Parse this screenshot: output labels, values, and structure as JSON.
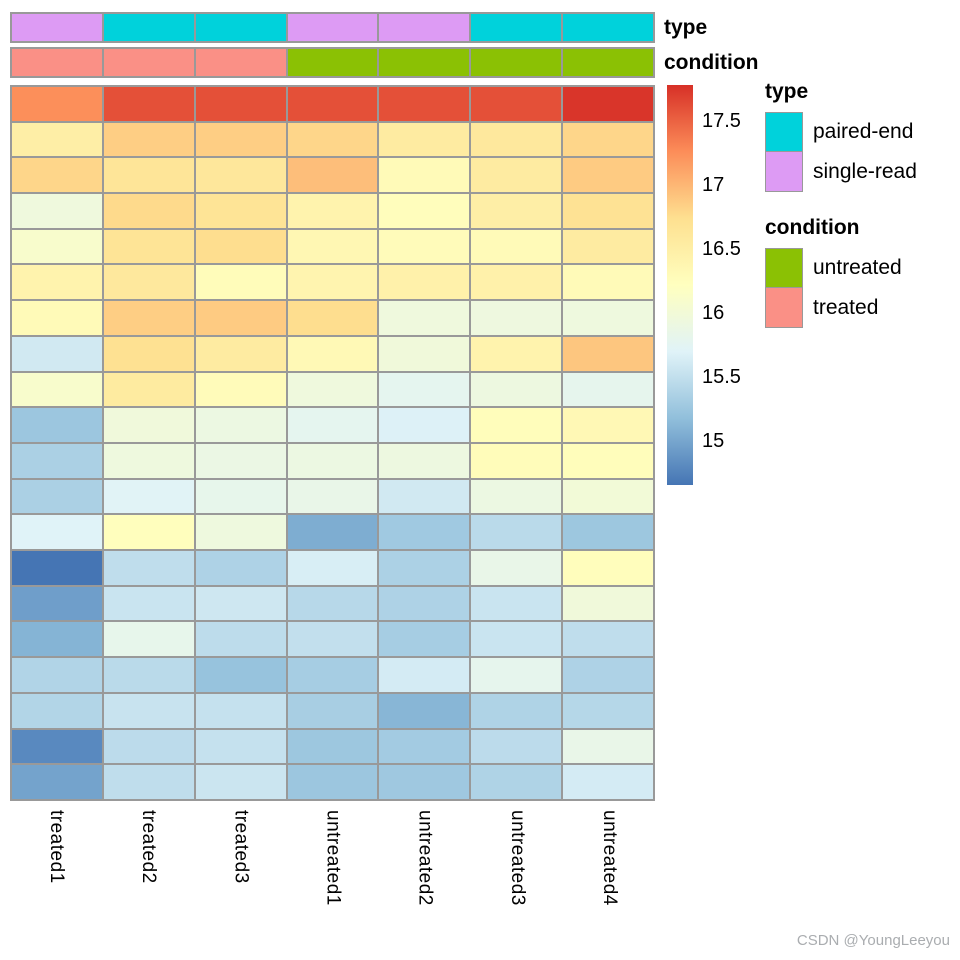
{
  "watermark": "CSDN @YoungLeeyou",
  "annotation_bars": {
    "type_label": "type",
    "condition_label": "condition"
  },
  "annotation_colors": {
    "paired-end": "#00D2DB",
    "single-read": "#DD9BF4",
    "untreated": "#8BC104",
    "treated": "#FA9086"
  },
  "legend": {
    "type": {
      "title": "type",
      "items": [
        {
          "label": "paired-end",
          "color": "#00D2DB"
        },
        {
          "label": "single-read",
          "color": "#DD9BF4"
        }
      ]
    },
    "condition": {
      "title": "condition",
      "items": [
        {
          "label": "untreated",
          "color": "#8BC104"
        },
        {
          "label": "treated",
          "color": "#FA9086"
        }
      ]
    }
  },
  "chart_data": {
    "type": "heatmap",
    "columns": [
      "treated1",
      "treated2",
      "treated3",
      "untreated1",
      "untreated2",
      "untreated3",
      "untreated4"
    ],
    "column_annotations": {
      "type": [
        "single-read",
        "paired-end",
        "paired-end",
        "single-read",
        "single-read",
        "paired-end",
        "paired-end"
      ],
      "condition": [
        "treated",
        "treated",
        "treated",
        "untreated",
        "untreated",
        "untreated",
        "untreated"
      ]
    },
    "values": [
      [
        17.25,
        17.6,
        17.6,
        17.6,
        17.6,
        17.6,
        17.75
      ],
      [
        16.5,
        16.85,
        16.85,
        16.8,
        16.55,
        16.6,
        16.8
      ],
      [
        16.8,
        16.65,
        16.62,
        16.95,
        16.3,
        16.55,
        16.87
      ],
      [
        15.95,
        16.78,
        16.67,
        16.42,
        16.25,
        16.5,
        16.7
      ],
      [
        16.1,
        16.67,
        16.75,
        16.35,
        16.28,
        16.3,
        16.55
      ],
      [
        16.42,
        16.6,
        16.27,
        16.4,
        16.45,
        16.45,
        16.3
      ],
      [
        16.3,
        16.85,
        16.87,
        16.75,
        15.95,
        15.93,
        15.94
      ],
      [
        15.6,
        16.72,
        16.55,
        16.32,
        15.97,
        16.42,
        16.9
      ],
      [
        16.1,
        16.56,
        16.28,
        15.95,
        15.78,
        15.92,
        15.8
      ],
      [
        15.25,
        15.96,
        15.9,
        15.78,
        15.68,
        16.26,
        16.33
      ],
      [
        15.35,
        15.94,
        15.88,
        15.9,
        15.92,
        16.27,
        16.26
      ],
      [
        15.35,
        15.72,
        15.82,
        15.85,
        15.6,
        15.9,
        16.0
      ],
      [
        15.7,
        16.24,
        15.94,
        15.05,
        15.28,
        15.45,
        15.26
      ],
      [
        14.66,
        15.48,
        15.37,
        15.65,
        15.36,
        15.85,
        16.25
      ],
      [
        14.95,
        15.55,
        15.58,
        15.43,
        15.37,
        15.55,
        15.97
      ],
      [
        15.1,
        15.82,
        15.47,
        15.5,
        15.32,
        15.55,
        15.48
      ],
      [
        15.39,
        15.45,
        15.22,
        15.32,
        15.62,
        15.8,
        15.37
      ],
      [
        15.4,
        15.54,
        15.52,
        15.33,
        15.12,
        15.38,
        15.42
      ],
      [
        14.8,
        15.46,
        15.52,
        15.26,
        15.3,
        15.46,
        15.85
      ],
      [
        14.98,
        15.48,
        15.56,
        15.25,
        15.27,
        15.38,
        15.62
      ]
    ],
    "color_scale": {
      "palette_low_to_high": [
        "#4575B4",
        "#91BFDB",
        "#E0F3F8",
        "#FFFFBF",
        "#FEE090",
        "#FC8D59",
        "#D73027"
      ],
      "domain": [
        14.66,
        17.78
      ],
      "ticks": [
        {
          "label": "17.5",
          "value": 17.5
        },
        {
          "label": "17",
          "value": 17.0
        },
        {
          "label": "16.5",
          "value": 16.5
        },
        {
          "label": "16",
          "value": 16.0
        },
        {
          "label": "15.5",
          "value": 15.5
        },
        {
          "label": "15",
          "value": 15.0
        }
      ],
      "legend_position": "right",
      "grid_color": "#999999"
    }
  }
}
